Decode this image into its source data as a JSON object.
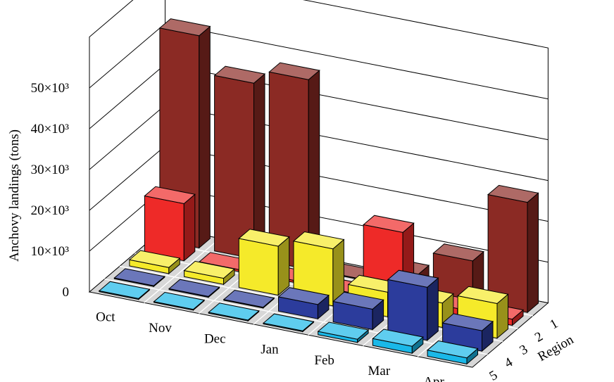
{
  "chart_data": {
    "type": "bar",
    "subtype": "3d-bar",
    "title": "",
    "ylabel": "Anchovy landings (tons)",
    "xlabel": "",
    "depth_label": "Region",
    "months": [
      "Oct",
      "Nov",
      "Dec",
      "Jan",
      "Feb",
      "Mar",
      "Apr"
    ],
    "regions": [
      "1",
      "2",
      "3",
      "4",
      "5"
    ],
    "yticks": [
      "0",
      "10×10³",
      "20×10³",
      "30×10³",
      "40×10³",
      "50×10³"
    ],
    "ylim": [
      0,
      50000
    ],
    "grid": true,
    "series": [
      {
        "region": "1",
        "color": "#8b2a24",
        "values": [
          52000,
          43000,
          46500,
          0,
          4000,
          10000,
          27000
        ]
      },
      {
        "region": "2",
        "color": "#ee2a28",
        "values": [
          14000,
          500,
          500,
          0,
          17500,
          1500,
          1500
        ]
      },
      {
        "region": "3",
        "color": "#f5ea2a",
        "values": [
          1500,
          1500,
          12000,
          14000,
          6000,
          6000,
          8500
        ]
      },
      {
        "region": "4",
        "color": "#2c3c9c",
        "values": [
          0,
          0,
          0,
          3500,
          5000,
          13000,
          5000
        ]
      },
      {
        "region": "5",
        "color": "#1ab8e8",
        "values": [
          0,
          0,
          0,
          0,
          800,
          1700,
          1500
        ]
      }
    ]
  }
}
